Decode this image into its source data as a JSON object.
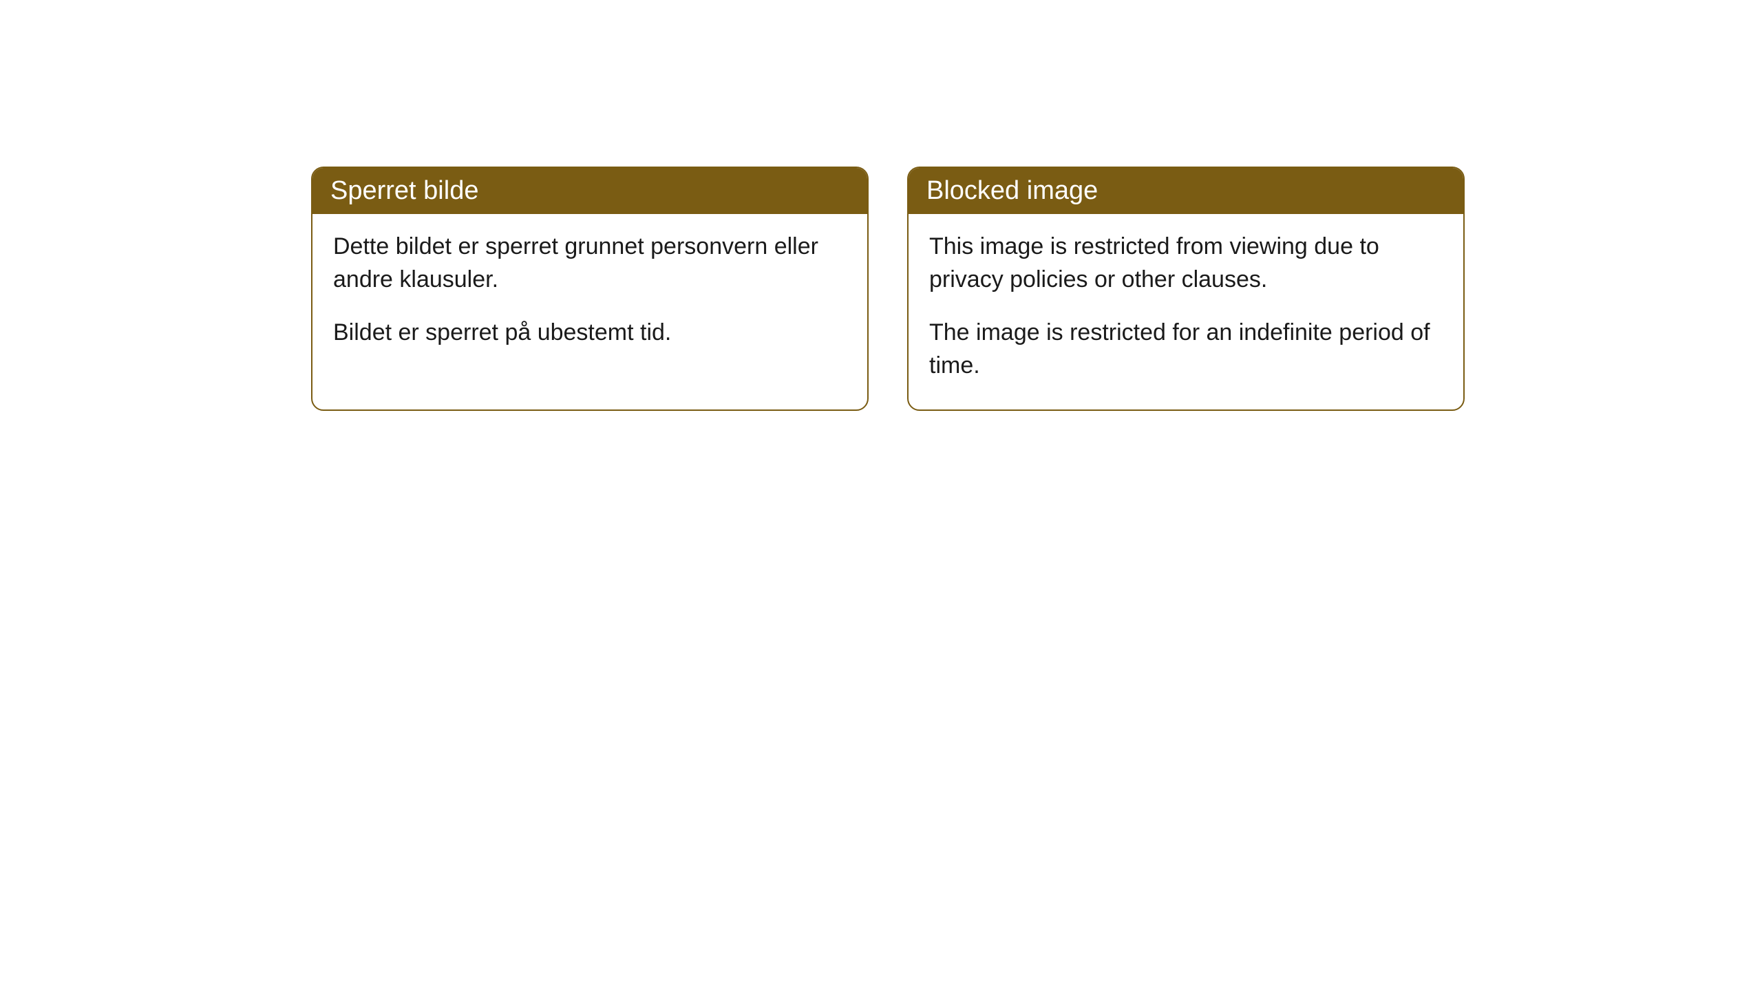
{
  "cards": [
    {
      "title": "Sperret bilde",
      "paragraph1": "Dette bildet er sperret grunnet personvern eller andre klausuler.",
      "paragraph2": "Bildet er sperret på ubestemt tid."
    },
    {
      "title": "Blocked image",
      "paragraph1": "This image is restricted from viewing due to privacy policies or other clauses.",
      "paragraph2": "The image is restricted for an indefinite period of time."
    }
  ],
  "styling": {
    "header_background_color": "#7a5c13",
    "header_text_color": "#ffffff",
    "card_border_color": "#7a5c13",
    "card_background_color": "#ffffff",
    "body_text_color": "#1a1a1a",
    "page_background_color": "#ffffff",
    "border_radius": 18,
    "header_font_size": 38,
    "body_font_size": 34
  }
}
